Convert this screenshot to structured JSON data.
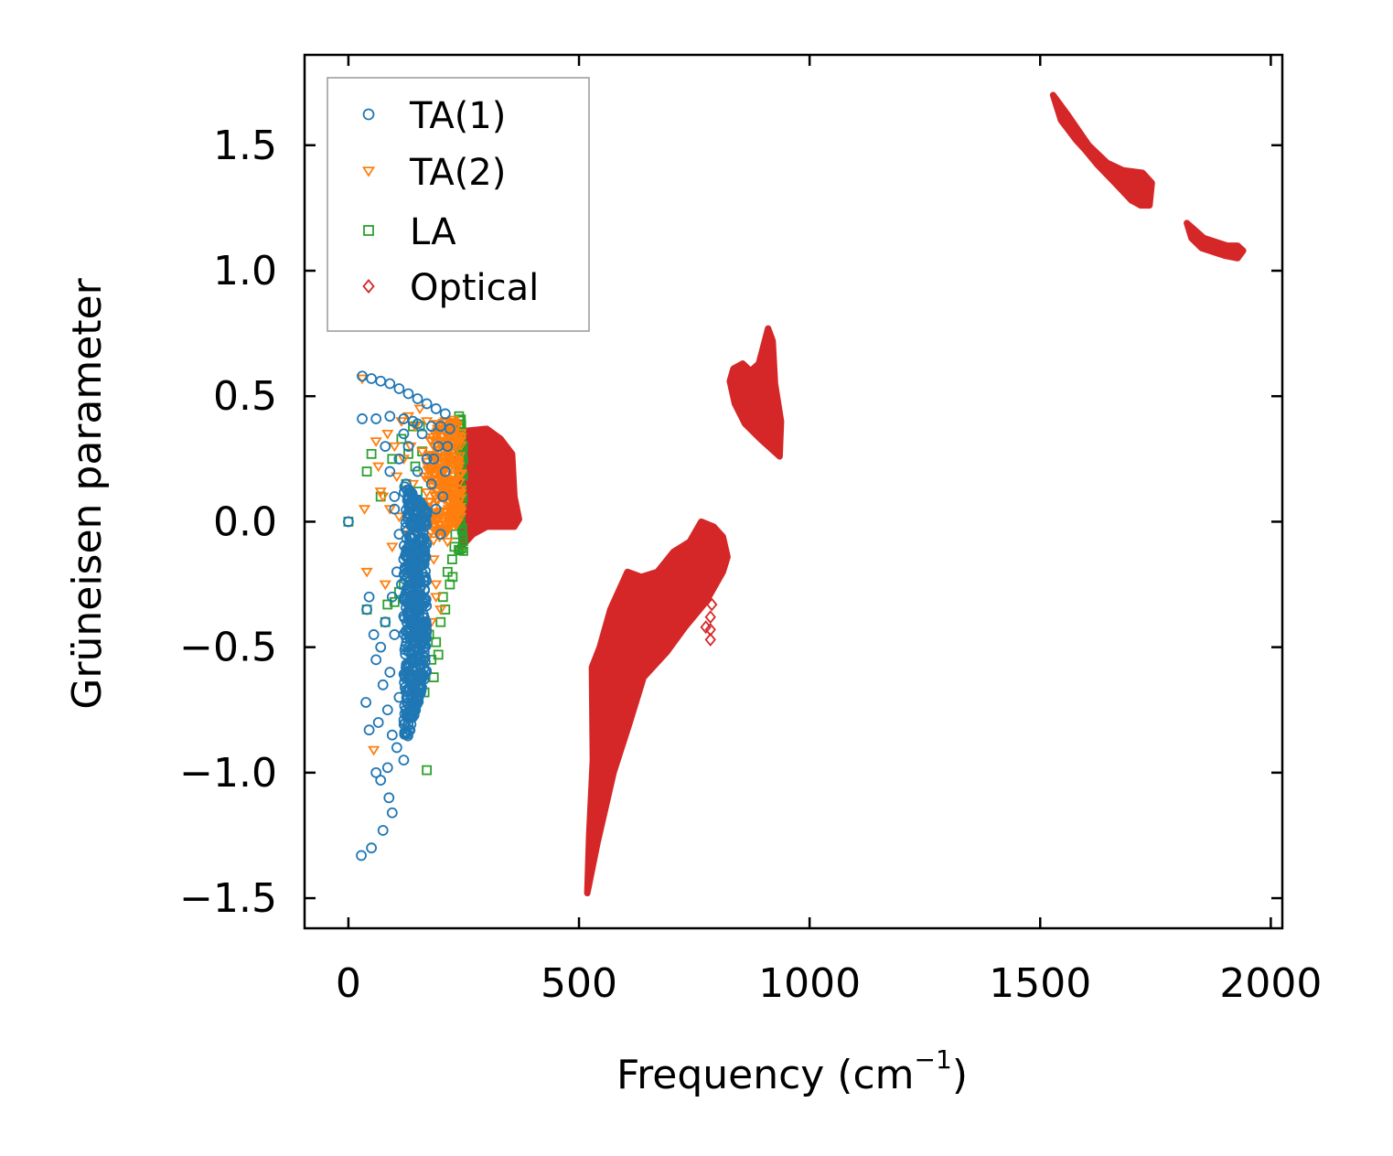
{
  "chart_data": {
    "type": "scatter",
    "title": "",
    "xlabel": "Frequency (cm",
    "xlabel_sup": "−1",
    "xlabel_suffix": ")",
    "ylabel": "Grüneisen parameter",
    "xlim": [
      -95,
      2025
    ],
    "ylim": [
      -1.62,
      1.86
    ],
    "xticks": [
      0,
      500,
      1000,
      1500,
      2000
    ],
    "xtick_labels": [
      "0",
      "500",
      "1000",
      "1500",
      "2000"
    ],
    "yticks": [
      -1.5,
      -1.0,
      -0.5,
      0.0,
      0.5,
      1.0,
      1.5
    ],
    "ytick_labels": [
      "−1.5",
      "−1.0",
      "−0.5",
      "0.0",
      "0.5",
      "1.0",
      "1.5"
    ],
    "legend_position": "top-left",
    "series": [
      {
        "name": "TA(1)",
        "marker": "circle",
        "color": "#1f77b4",
        "points": [
          [
            0,
            0
          ],
          [
            28,
            -1.33
          ],
          [
            38,
            -0.72
          ],
          [
            50,
            -1.3
          ],
          [
            60,
            -1.0
          ],
          [
            75,
            -1.23
          ],
          [
            88,
            -1.1
          ],
          [
            95,
            -1.16
          ],
          [
            85,
            -0.98
          ],
          [
            70,
            -1.03
          ],
          [
            30,
            0.58
          ],
          [
            50,
            0.57
          ],
          [
            70,
            0.56
          ],
          [
            90,
            0.55
          ],
          [
            110,
            0.53
          ],
          [
            130,
            0.51
          ],
          [
            150,
            0.49
          ],
          [
            170,
            0.47
          ],
          [
            190,
            0.45
          ],
          [
            210,
            0.43
          ],
          [
            30,
            0.41
          ],
          [
            60,
            0.41
          ],
          [
            90,
            0.42
          ],
          [
            120,
            0.41
          ],
          [
            150,
            0.39
          ],
          [
            180,
            0.38
          ],
          [
            200,
            0.38
          ],
          [
            220,
            0.37
          ],
          [
            45,
            -0.83
          ],
          [
            45,
            -0.3
          ],
          [
            55,
            -0.45
          ],
          [
            60,
            -0.55
          ],
          [
            65,
            -0.8
          ],
          [
            70,
            -0.5
          ],
          [
            75,
            -0.65
          ],
          [
            80,
            -0.4
          ],
          [
            85,
            -0.75
          ],
          [
            90,
            -0.6
          ],
          [
            95,
            -0.85
          ],
          [
            100,
            -0.45
          ],
          [
            105,
            -0.9
          ],
          [
            110,
            -0.7
          ],
          [
            115,
            -0.25
          ],
          [
            120,
            -0.95
          ],
          [
            80,
            0.3
          ],
          [
            90,
            0.2
          ],
          [
            100,
            0.1
          ],
          [
            110,
            0.25
          ],
          [
            120,
            0.35
          ],
          [
            125,
            0.15
          ],
          [
            130,
            0.3
          ],
          [
            140,
            0.4
          ],
          [
            150,
            0.2
          ],
          [
            160,
            0.35
          ],
          [
            170,
            0.25
          ],
          [
            180,
            0.15
          ],
          [
            190,
            0.05
          ],
          [
            200,
            -0.05
          ],
          [
            205,
            0.1
          ],
          [
            210,
            0.2
          ],
          [
            215,
            0.3
          ],
          [
            195,
            0.3
          ],
          [
            185,
            0.25
          ],
          [
            100,
            0.05
          ],
          [
            110,
            -0.05
          ],
          [
            120,
            -0.15
          ],
          [
            95,
            -0.3
          ],
          [
            105,
            -0.2
          ],
          [
            40,
            -0.35
          ]
        ],
        "band": {
          "x_min": 120,
          "x_max": 170,
          "y_lo_left": -0.92,
          "y_lo_right": -0.6,
          "y_hi_left": 0.15,
          "y_hi_right": 0.05
        }
      },
      {
        "name": "TA(2)",
        "marker": "triangle-down",
        "color": "#ff7f0e",
        "points": [
          [
            30,
            0.57
          ],
          [
            35,
            0.05
          ],
          [
            40,
            -0.2
          ],
          [
            55,
            -0.91
          ],
          [
            60,
            0.32
          ],
          [
            65,
            0.22
          ],
          [
            70,
            0.12
          ],
          [
            75,
            0.1
          ],
          [
            80,
            -0.25
          ],
          [
            85,
            0.35
          ],
          [
            90,
            0.05
          ],
          [
            95,
            -0.1
          ],
          [
            100,
            0.3
          ],
          [
            105,
            0.18
          ],
          [
            110,
            0.02
          ],
          [
            115,
            0.4
          ],
          [
            120,
            0.25
          ],
          [
            125,
            -0.05
          ],
          [
            130,
            0.42
          ],
          [
            135,
            0.3
          ],
          [
            140,
            0.15
          ],
          [
            145,
            0.38
          ],
          [
            150,
            0.05
          ],
          [
            155,
            0.45
          ],
          [
            160,
            0.28
          ],
          [
            165,
            0.18
          ],
          [
            170,
            0.4
          ],
          [
            175,
            0.08
          ],
          [
            180,
            0.32
          ],
          [
            185,
            -0.15
          ],
          [
            190,
            -0.25
          ],
          [
            195,
            0.35
          ],
          [
            200,
            0.2
          ],
          [
            205,
            0.1
          ],
          [
            210,
            0.4
          ],
          [
            215,
            -0.08
          ],
          [
            220,
            0.3
          ],
          [
            225,
            0.25
          ],
          [
            230,
            0.15
          ],
          [
            235,
            0.38
          ],
          [
            240,
            0.05
          ],
          [
            190,
            -0.3
          ],
          [
            200,
            -0.35
          ],
          [
            180,
            -0.4
          ],
          [
            170,
            -0.45
          ],
          [
            160,
            -0.3
          ]
        ],
        "band": {
          "x_min": 170,
          "x_max": 245,
          "y_lo_left": -0.1,
          "y_lo_right": 0.0,
          "y_hi_left": 0.38,
          "y_hi_right": 0.42
        }
      },
      {
        "name": "LA",
        "marker": "square",
        "color": "#2ca02c",
        "points": [
          [
            0,
            0
          ],
          [
            40,
            0.2
          ],
          [
            50,
            0.27
          ],
          [
            40,
            -0.35
          ],
          [
            80,
            -0.4
          ],
          [
            85,
            -0.33
          ],
          [
            100,
            -0.32
          ],
          [
            110,
            -0.28
          ],
          [
            120,
            -0.25
          ],
          [
            125,
            0.15
          ],
          [
            130,
            0.27
          ],
          [
            140,
            0.38
          ],
          [
            145,
            0.22
          ],
          [
            150,
            0.12
          ],
          [
            155,
            0.38
          ],
          [
            160,
            0.28
          ],
          [
            165,
            -0.68
          ],
          [
            170,
            -0.99
          ],
          [
            175,
            -0.45
          ],
          [
            180,
            -0.55
          ],
          [
            185,
            -0.62
          ],
          [
            190,
            -0.48
          ],
          [
            195,
            -0.53
          ],
          [
            200,
            -0.4
          ],
          [
            205,
            -0.3
          ],
          [
            210,
            -0.35
          ],
          [
            215,
            -0.2
          ],
          [
            220,
            -0.25
          ],
          [
            225,
            -0.15
          ],
          [
            230,
            -0.1
          ],
          [
            235,
            0.0
          ],
          [
            240,
            0.42
          ],
          [
            245,
            0.35
          ],
          [
            248,
            0.3
          ],
          [
            242,
            0.25
          ],
          [
            246,
            0.2
          ],
          [
            244,
            0.1
          ],
          [
            238,
            0.05
          ],
          [
            232,
            -0.05
          ],
          [
            226,
            -0.22
          ],
          [
            70,
            0.1
          ],
          [
            95,
            0.25
          ],
          [
            115,
            0.33
          ]
        ]
      },
      {
        "name": "Optical",
        "marker": "diamond",
        "color": "#d62728",
        "points": [
          [
            785,
            -0.47
          ],
          [
            785,
            -0.43
          ],
          [
            785,
            -0.38
          ],
          [
            788,
            -0.33
          ],
          [
            775,
            -0.42
          ]
        ],
        "regions": [
          [
            [
              245,
              0.36
            ],
            [
              300,
              0.37
            ],
            [
              330,
              0.33
            ],
            [
              355,
              0.27
            ],
            [
              360,
              0.1
            ],
            [
              370,
              0.01
            ],
            [
              360,
              -0.02
            ],
            [
              300,
              -0.02
            ],
            [
              270,
              -0.05
            ],
            [
              245,
              -0.1
            ]
          ],
          [
            [
              518,
              -1.48
            ],
            [
              540,
              -1.28
            ],
            [
              575,
              -1.0
            ],
            [
              610,
              -0.8
            ],
            [
              640,
              -0.62
            ],
            [
              690,
              -0.52
            ],
            [
              730,
              -0.42
            ],
            [
              775,
              -0.32
            ],
            [
              812,
              -0.2
            ],
            [
              822,
              -0.14
            ],
            [
              812,
              -0.06
            ],
            [
              792,
              -0.02
            ],
            [
              765,
              0.0
            ],
            [
              740,
              -0.08
            ],
            [
              705,
              -0.12
            ],
            [
              670,
              -0.2
            ],
            [
              635,
              -0.22
            ],
            [
              605,
              -0.2
            ],
            [
              568,
              -0.35
            ],
            [
              545,
              -0.5
            ],
            [
              528,
              -0.58
            ],
            [
              530,
              -0.95
            ],
            [
              522,
              -1.25
            ]
          ],
          [
            [
              893,
              0.33
            ],
            [
              935,
              0.26
            ],
            [
              938,
              0.4
            ],
            [
              925,
              0.55
            ],
            [
              920,
              0.72
            ],
            [
              910,
              0.77
            ],
            [
              890,
              0.63
            ],
            [
              872,
              0.6
            ],
            [
              855,
              0.63
            ],
            [
              835,
              0.61
            ],
            [
              827,
              0.56
            ],
            [
              838,
              0.47
            ],
            [
              860,
              0.39
            ]
          ],
          [
            [
              1528,
              1.7
            ],
            [
              1560,
              1.62
            ],
            [
              1605,
              1.5
            ],
            [
              1645,
              1.43
            ],
            [
              1680,
              1.4
            ],
            [
              1722,
              1.39
            ],
            [
              1742,
              1.35
            ],
            [
              1737,
              1.26
            ],
            [
              1718,
              1.26
            ],
            [
              1698,
              1.28
            ],
            [
              1662,
              1.35
            ],
            [
              1625,
              1.42
            ],
            [
              1598,
              1.48
            ],
            [
              1578,
              1.52
            ],
            [
              1545,
              1.6
            ]
          ],
          [
            [
              1818,
              1.19
            ],
            [
              1855,
              1.13
            ],
            [
              1905,
              1.1
            ],
            [
              1928,
              1.1
            ],
            [
              1940,
              1.08
            ],
            [
              1928,
              1.05
            ],
            [
              1900,
              1.06
            ],
            [
              1850,
              1.09
            ],
            [
              1828,
              1.13
            ]
          ]
        ]
      }
    ]
  }
}
